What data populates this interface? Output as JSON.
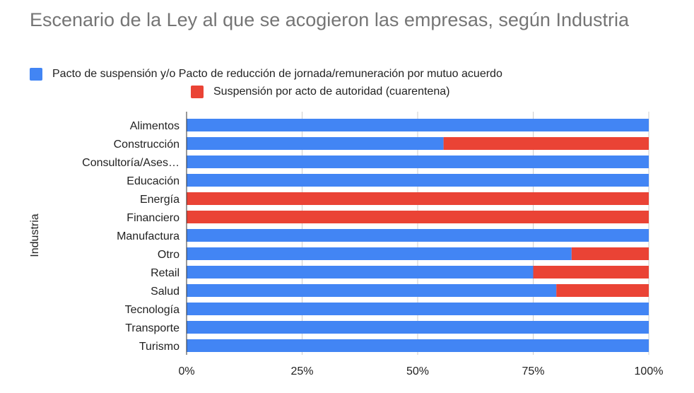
{
  "chart_data": {
    "type": "bar",
    "orientation": "horizontal",
    "stacked": "percent",
    "title": "Escenario de la Ley al que se acogieron las empresas, según Industria",
    "ylabel": "Industria",
    "xlabel": "",
    "categories": [
      "Alimentos",
      "Construcción",
      "Consultoría/Ases…",
      "Educación",
      "Energía",
      "Financiero",
      "Manufactura",
      "Otro",
      "Retail",
      "Salud",
      "Tecnología",
      "Transporte",
      "Turismo"
    ],
    "series": [
      {
        "name": "Pacto de suspensión y/o Pacto de reducción de jornada/remuneración por mutuo acuerdo",
        "color": "#4285f4",
        "values": [
          100,
          55.6,
          100,
          100,
          0,
          0,
          100,
          83.3,
          75,
          80,
          100,
          100,
          100
        ]
      },
      {
        "name": "Suspensión por acto de autoridad (cuarentena)",
        "color": "#ea4335",
        "values": [
          0,
          44.4,
          0,
          0,
          100,
          100,
          0,
          16.7,
          25,
          20,
          0,
          0,
          0
        ]
      }
    ],
    "xlim": [
      0,
      100
    ],
    "xticks": [
      "0%",
      "25%",
      "50%",
      "75%",
      "100%"
    ],
    "grid": true,
    "legend": "top"
  }
}
